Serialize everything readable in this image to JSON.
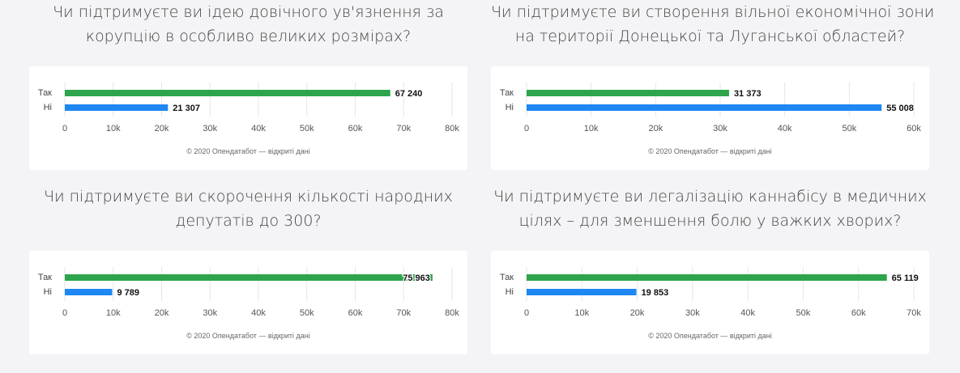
{
  "charts": [
    {
      "question_lines": [
        "Чи підтримуєте ви ідею довічного ув'язнення за",
        "корупцію в особливо великих розмірах?"
      ],
      "credit": "© 2020 Опендатабот — відкриті дані",
      "chart_data": {
        "type": "bar",
        "orientation": "horizontal",
        "title": "Чи підтримуєте ви ідею довічного ув'язнення за корупцію в особливо великих розмірах?",
        "categories": [
          "Так",
          "Ні"
        ],
        "values": [
          67240,
          21307
        ],
        "value_labels": [
          "67 240",
          "21 307"
        ],
        "colors": [
          "#2ea54c",
          "#1f87f2"
        ],
        "xlim": [
          0,
          80000
        ],
        "ticks": [
          0,
          10000,
          20000,
          30000,
          40000,
          50000,
          60000,
          70000,
          80000
        ],
        "tick_labels": [
          "0",
          "10k",
          "20k",
          "30k",
          "40k",
          "50k",
          "60k",
          "70k",
          "80k"
        ],
        "grid": true
      }
    },
    {
      "question_lines": [
        "Чи підтримуєте ви створення вільної економічної зони",
        "на території Донецької та Луганської областей?"
      ],
      "credit": "© 2020 Опендатабот — відкриті дані",
      "chart_data": {
        "type": "bar",
        "orientation": "horizontal",
        "title": "Чи підтримуєте ви створення вільної економічної зони на території Донецької та Луганської областей?",
        "categories": [
          "Так",
          "Ні"
        ],
        "values": [
          31373,
          55008
        ],
        "value_labels": [
          "31 373",
          "55 008"
        ],
        "colors": [
          "#2ea54c",
          "#1f87f2"
        ],
        "xlim": [
          0,
          60000
        ],
        "ticks": [
          0,
          10000,
          20000,
          30000,
          40000,
          50000,
          60000
        ],
        "tick_labels": [
          "0",
          "10k",
          "20k",
          "30k",
          "40k",
          "50k",
          "60k"
        ],
        "grid": true
      }
    },
    {
      "question_lines": [
        "Чи підтримуєте ви скорочення кількості народних",
        "депутатів до 300?"
      ],
      "credit": "© 2020 Опендатабот — відкриті дані",
      "chart_data": {
        "type": "bar",
        "orientation": "horizontal",
        "title": "Чи підтримуєте ви скорочення кількості народних депутатів до 300?",
        "categories": [
          "Так",
          "Ні"
        ],
        "values": [
          75963,
          9789
        ],
        "value_labels": [
          "75 963",
          "9 789"
        ],
        "colors": [
          "#2ea54c",
          "#1f87f2"
        ],
        "xlim": [
          0,
          80000
        ],
        "ticks": [
          0,
          10000,
          20000,
          30000,
          40000,
          50000,
          60000,
          70000,
          80000
        ],
        "tick_labels": [
          "0",
          "10k",
          "20k",
          "30k",
          "40k",
          "50k",
          "60k",
          "70k",
          "80k"
        ],
        "grid": true
      }
    },
    {
      "question_lines": [
        "Чи підтримуєте ви легалізацію каннабісу в медичних",
        "цілях – для зменшення болю у важких хворих?"
      ],
      "credit": "© 2020 Опендатабот — відкриті дані",
      "chart_data": {
        "type": "bar",
        "orientation": "horizontal",
        "title": "Чи підтримуєте ви легалізацію каннабісу в медичних цілях – для зменшення болю у важких хворих?",
        "categories": [
          "Так",
          "Ні"
        ],
        "values": [
          65119,
          19853
        ],
        "value_labels": [
          "65 119",
          "19 853"
        ],
        "colors": [
          "#2ea54c",
          "#1f87f2"
        ],
        "xlim": [
          0,
          70000
        ],
        "ticks": [
          0,
          10000,
          20000,
          30000,
          40000,
          50000,
          60000,
          70000
        ],
        "tick_labels": [
          "0",
          "10k",
          "20k",
          "30k",
          "40k",
          "50k",
          "60k",
          "70k"
        ],
        "grid": true
      }
    }
  ]
}
